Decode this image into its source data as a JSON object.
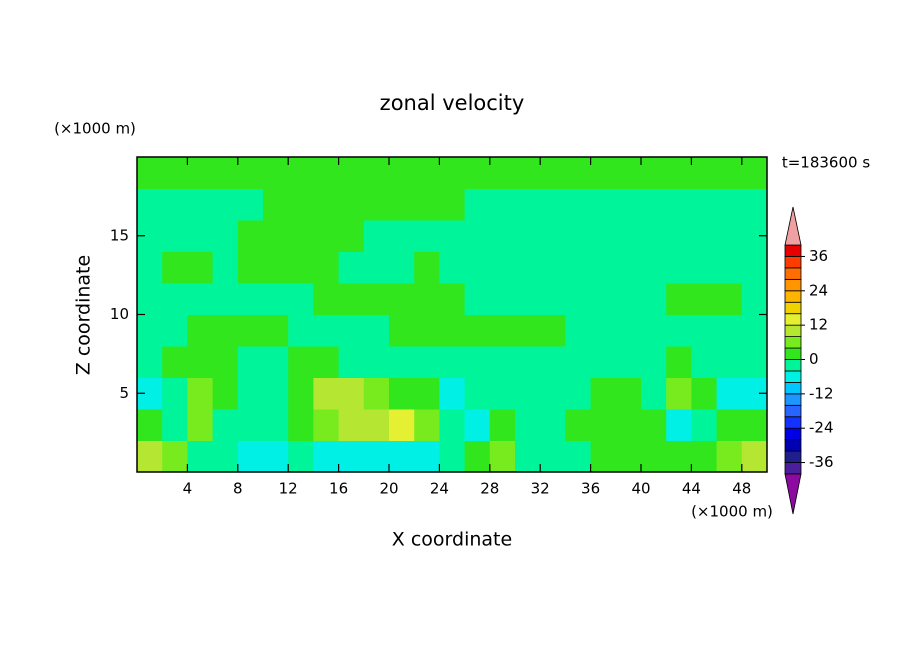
{
  "chart_data": {
    "type": "contour",
    "title": "zonal velocity",
    "x_label": "X coordinate",
    "y_label": "Z coordinate",
    "x_unit_label": "(×1000 m)",
    "y_unit_label": "(×1000 m)",
    "time_label": "t=183600 s",
    "xlim": [
      0,
      50
    ],
    "ylim": [
      0,
      20
    ],
    "xticks": [
      4,
      8,
      12,
      16,
      20,
      24,
      28,
      32,
      36,
      40,
      44,
      48
    ],
    "yticks": [
      5,
      10,
      15
    ],
    "x": [
      1,
      3,
      5,
      7,
      9,
      11,
      13,
      15,
      17,
      19,
      21,
      23,
      25,
      27,
      29,
      31,
      33,
      35,
      37,
      39,
      41,
      43,
      45,
      47,
      49
    ],
    "z": [
      1,
      3,
      5,
      7,
      9,
      11,
      13,
      15,
      17,
      19
    ],
    "values": [
      [
        10,
        4,
        -2,
        -2,
        -6,
        -6,
        -2,
        -6,
        -6,
        -6,
        -6,
        -6,
        -2,
        2,
        6,
        -2,
        -2,
        -2,
        2,
        2,
        2,
        2,
        2,
        6,
        10
      ],
      [
        2,
        -2,
        4,
        -2,
        -2,
        -2,
        2,
        6,
        10,
        10,
        14,
        6,
        -2,
        -6,
        2,
        -2,
        -2,
        2,
        2,
        2,
        2,
        -6,
        -2,
        2,
        2
      ],
      [
        -8,
        -2,
        6,
        2,
        -2,
        -2,
        2,
        10,
        10,
        6,
        2,
        2,
        -6,
        -2,
        -2,
        -2,
        -2,
        -2,
        2,
        2,
        -2,
        6,
        2,
        -6,
        -8
      ],
      [
        -2,
        2,
        2,
        2,
        -2,
        -2,
        2,
        2,
        -2,
        -2,
        -2,
        -2,
        -2,
        -2,
        -2,
        -2,
        -2,
        -2,
        -2,
        -2,
        -2,
        2,
        -2,
        -2,
        -2
      ],
      [
        -2,
        -2,
        2,
        2,
        2,
        2,
        -2,
        -2,
        -2,
        -2,
        2,
        2,
        2,
        2,
        2,
        2,
        2,
        -2,
        -2,
        -2,
        -2,
        -2,
        -2,
        -2,
        -2
      ],
      [
        -2,
        -2,
        -2,
        -2,
        -2,
        -2,
        -2,
        2,
        2,
        2,
        2,
        2,
        2,
        -2,
        -2,
        -2,
        -2,
        -2,
        -2,
        -2,
        -2,
        2,
        2,
        2,
        -2
      ],
      [
        -2,
        2,
        2,
        -2,
        2,
        2,
        2,
        2,
        -2,
        -2,
        -2,
        2,
        -2,
        -2,
        -2,
        -2,
        -2,
        -2,
        -2,
        -2,
        -2,
        -2,
        -2,
        -2,
        -2
      ],
      [
        -2,
        -2,
        -2,
        -2,
        2,
        2,
        2,
        2,
        2,
        -2,
        -2,
        -2,
        -2,
        -2,
        -2,
        -2,
        -2,
        -2,
        -2,
        -2,
        -2,
        -2,
        -2,
        -2,
        -2
      ],
      [
        -2,
        -2,
        -2,
        -2,
        -2,
        2,
        2,
        2,
        2,
        2,
        2,
        2,
        2,
        -2,
        -2,
        -2,
        -2,
        -2,
        -2,
        -2,
        -2,
        -2,
        -2,
        -2,
        -2
      ],
      [
        2,
        2,
        2,
        2,
        2,
        2,
        2,
        2,
        2,
        2,
        2,
        2,
        2,
        2,
        2,
        2,
        2,
        2,
        2,
        2,
        2,
        2,
        2,
        2,
        2
      ]
    ],
    "levels": [
      -40,
      -36,
      -32,
      -28,
      -24,
      -20,
      -16,
      -12,
      -8,
      -4,
      0,
      4,
      8,
      12,
      16,
      20,
      24,
      28,
      32,
      36,
      40
    ],
    "colors": [
      "#4b1e9b",
      "#1e1e8c",
      "#0000b4",
      "#0000e6",
      "#1432ff",
      "#2864ff",
      "#1e96ff",
      "#00c8ff",
      "#00f0e6",
      "#00f59a",
      "#32e61e",
      "#78eb1e",
      "#b4e632",
      "#e6f032",
      "#f0d200",
      "#ffb400",
      "#ff9600",
      "#ff6e00",
      "#ff3c00",
      "#e60000"
    ],
    "under_color": "#8c0aa0",
    "over_color": "#f0a0a0",
    "colorbar_ticks": [
      -36,
      -24,
      -12,
      0,
      12,
      24,
      36
    ]
  }
}
